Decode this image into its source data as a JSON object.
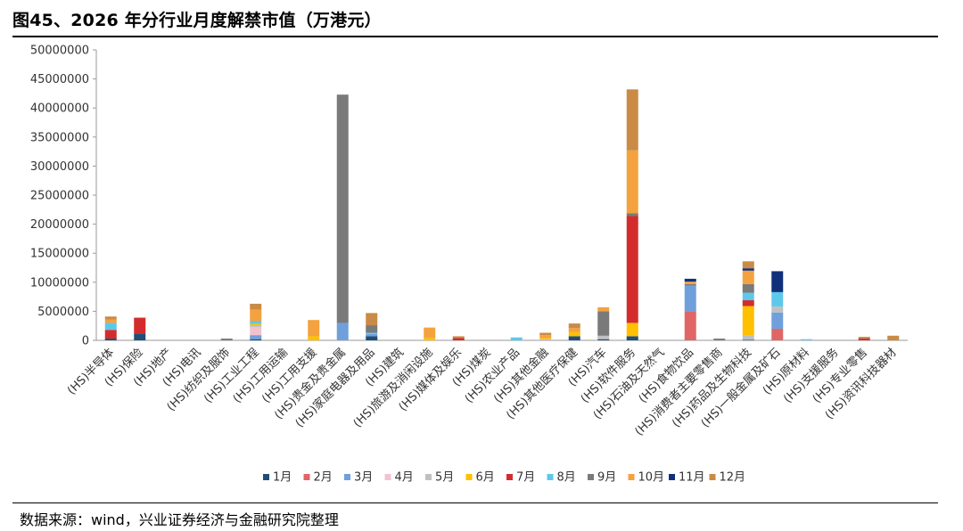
{
  "figure": {
    "title": "图45、2026 年分行业月度解禁市值（万港元）",
    "source": "数据来源：wind，兴业证券经济与金融研究院整理"
  },
  "chart_data": {
    "type": "bar",
    "stacked": true,
    "title": "",
    "xlabel": "",
    "ylabel": "",
    "ylim": [
      0,
      50000000
    ],
    "yticks": [
      0,
      5000000,
      10000000,
      15000000,
      20000000,
      25000000,
      30000000,
      35000000,
      40000000,
      45000000,
      50000000
    ],
    "grid": false,
    "legend_position": "bottom",
    "categories": [
      "(HS)半导体",
      "(HS)保险",
      "(HS)地产",
      "(HS)电讯",
      "(HS)纺织及服饰",
      "(HS)工业工程",
      "(HS)工用运输",
      "(HS)工用支援",
      "(HS)贵金及贵金属",
      "(HS)家庭电器及用品",
      "(HS)建筑",
      "(HS)旅游及消闲设施",
      "(HS)媒体及娱乐",
      "(HS)煤炭",
      "(HS)农业产品",
      "(HS)其他金融",
      "(HS)其他医疗保健",
      "(HS)汽车",
      "(HS)软件服务",
      "(HS)石油及天然气",
      "(HS)食物饮品",
      "(HS)消费者主要零售商",
      "(HS)药品及生物科技",
      "(HS)一般金属及矿石",
      "(HS)原材料",
      "(HS)支援服务",
      "(HS)专业零售",
      "(HS)资讯科技器材"
    ],
    "series": [
      {
        "name": "1月",
        "color": "#1f4e79",
        "values": [
          300000,
          1200000,
          0,
          0,
          0,
          200000,
          0,
          0,
          0,
          700000,
          0,
          0,
          0,
          0,
          0,
          0,
          700000,
          200000,
          700000,
          0,
          0,
          0,
          100000,
          0,
          0,
          0,
          0,
          0
        ]
      },
      {
        "name": "2月",
        "color": "#e06666",
        "values": [
          0,
          0,
          0,
          0,
          0,
          0,
          0,
          0,
          0,
          0,
          0,
          0,
          0,
          0,
          0,
          0,
          0,
          0,
          0,
          0,
          5000000,
          0,
          0,
          2000000,
          0,
          0,
          0,
          0
        ]
      },
      {
        "name": "3月",
        "color": "#6fa0dc",
        "values": [
          0,
          0,
          0,
          0,
          0,
          700000,
          0,
          0,
          3000000,
          400000,
          0,
          0,
          0,
          0,
          0,
          0,
          0,
          0,
          0,
          0,
          4400000,
          0,
          0,
          2800000,
          0,
          0,
          0,
          0
        ]
      },
      {
        "name": "4月",
        "color": "#f4c2cf",
        "values": [
          0,
          0,
          0,
          0,
          0,
          1400000,
          0,
          0,
          0,
          0,
          0,
          0,
          0,
          0,
          0,
          0,
          0,
          0,
          0,
          0,
          0,
          0,
          0,
          0,
          0,
          0,
          0,
          0
        ]
      },
      {
        "name": "5月",
        "color": "#c0c0c0",
        "values": [
          0,
          0,
          0,
          0,
          0,
          300000,
          0,
          0,
          0,
          0,
          0,
          0,
          0,
          0,
          0,
          200000,
          0,
          600000,
          0,
          0,
          0,
          0,
          800000,
          1000000,
          0,
          0,
          0,
          0
        ]
      },
      {
        "name": "6月",
        "color": "#ffc000",
        "values": [
          0,
          0,
          0,
          0,
          0,
          200000,
          0,
          700000,
          0,
          0,
          0,
          400000,
          0,
          0,
          0,
          200000,
          700000,
          0,
          2300000,
          0,
          0,
          0,
          5000000,
          0,
          0,
          0,
          0,
          0
        ]
      },
      {
        "name": "7月",
        "color": "#d42c2c",
        "values": [
          1500000,
          2700000,
          0,
          0,
          0,
          0,
          0,
          0,
          0,
          0,
          0,
          0,
          400000,
          0,
          0,
          0,
          0,
          0,
          18400000,
          0,
          0,
          0,
          1000000,
          0,
          0,
          0,
          300000,
          0
        ]
      },
      {
        "name": "8月",
        "color": "#5ec8ea",
        "values": [
          1200000,
          0,
          0,
          0,
          0,
          500000,
          0,
          0,
          0,
          200000,
          0,
          0,
          0,
          0,
          500000,
          0,
          0,
          0,
          0,
          0,
          0,
          0,
          1300000,
          2500000,
          200000,
          0,
          0,
          0
        ]
      },
      {
        "name": "9月",
        "color": "#7a7a7a",
        "values": [
          0,
          0,
          0,
          0,
          300000,
          0,
          0,
          0,
          39300000,
          1300000,
          0,
          0,
          0,
          0,
          0,
          0,
          0,
          4200000,
          500000,
          0,
          300000,
          300000,
          1500000,
          0,
          0,
          0,
          0,
          0
        ]
      },
      {
        "name": "10月",
        "color": "#f4a23f",
        "values": [
          600000,
          0,
          0,
          0,
          0,
          2000000,
          0,
          2800000,
          0,
          0,
          0,
          1800000,
          0,
          0,
          0,
          500000,
          700000,
          700000,
          10800000,
          0,
          400000,
          0,
          2300000,
          0,
          0,
          0,
          0,
          0
        ]
      },
      {
        "name": "11月",
        "color": "#10307a",
        "values": [
          0,
          0,
          0,
          0,
          0,
          0,
          0,
          0,
          0,
          0,
          0,
          0,
          0,
          0,
          0,
          0,
          0,
          0,
          0,
          0,
          500000,
          0,
          400000,
          3600000,
          0,
          0,
          0,
          0
        ]
      },
      {
        "name": "12月",
        "color": "#c98b45",
        "values": [
          500000,
          0,
          0,
          0,
          0,
          1000000,
          0,
          0,
          0,
          2100000,
          0,
          0,
          300000,
          0,
          0,
          400000,
          800000,
          0,
          10500000,
          0,
          0,
          0,
          1200000,
          0,
          0,
          0,
          300000,
          800000
        ]
      }
    ]
  }
}
